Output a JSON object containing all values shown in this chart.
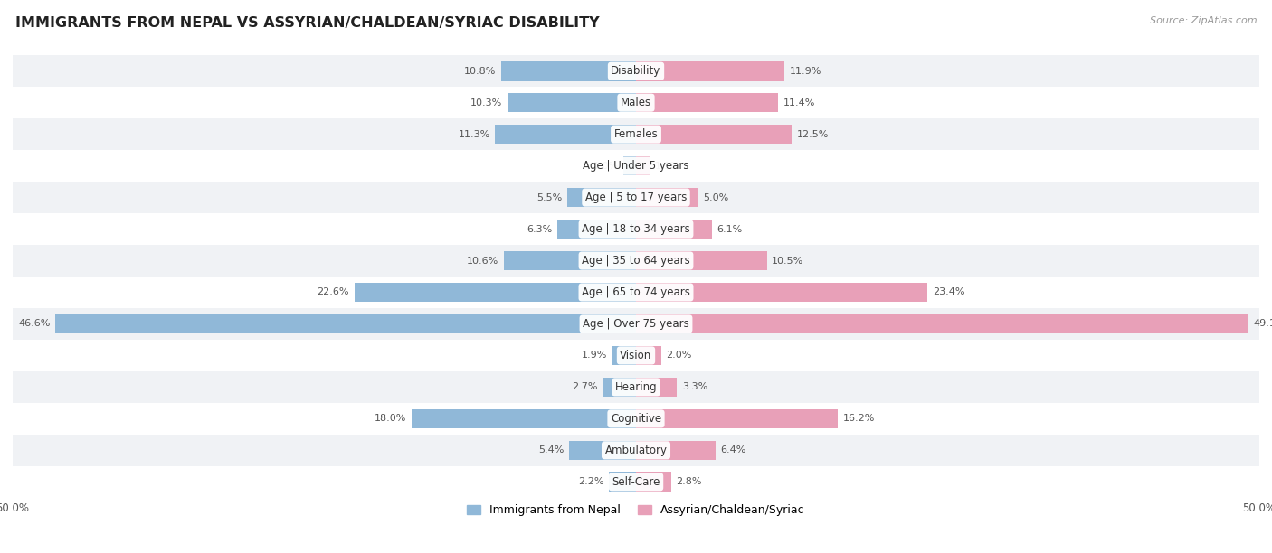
{
  "title": "IMMIGRANTS FROM NEPAL VS ASSYRIAN/CHALDEAN/SYRIAC DISABILITY",
  "source": "Source: ZipAtlas.com",
  "categories": [
    "Disability",
    "Males",
    "Females",
    "Age | Under 5 years",
    "Age | 5 to 17 years",
    "Age | 18 to 34 years",
    "Age | 35 to 64 years",
    "Age | 65 to 74 years",
    "Age | Over 75 years",
    "Vision",
    "Hearing",
    "Cognitive",
    "Ambulatory",
    "Self-Care"
  ],
  "nepal_values": [
    10.8,
    10.3,
    11.3,
    1.0,
    5.5,
    6.3,
    10.6,
    22.6,
    46.6,
    1.9,
    2.7,
    18.0,
    5.4,
    2.2
  ],
  "assyrian_values": [
    11.9,
    11.4,
    12.5,
    1.1,
    5.0,
    6.1,
    10.5,
    23.4,
    49.1,
    2.0,
    3.3,
    16.2,
    6.4,
    2.8
  ],
  "nepal_color": "#90b8d8",
  "assyrian_color": "#e8a0b8",
  "nepal_label": "Immigrants from Nepal",
  "assyrian_label": "Assyrian/Chaldean/Syriac",
  "axis_max": 50.0,
  "row_bg_odd": "#f0f2f5",
  "row_bg_even": "#ffffff",
  "bar_height": 0.62,
  "label_fontsize": 8.5,
  "value_fontsize": 8.0,
  "title_fontsize": 11.5,
  "source_fontsize": 8.0
}
